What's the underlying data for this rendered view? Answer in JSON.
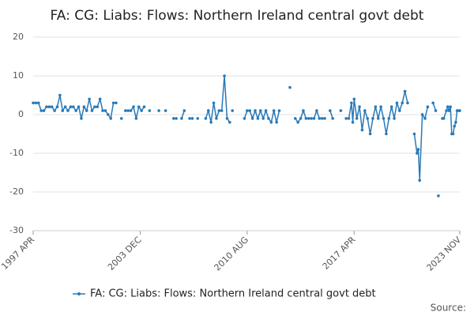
{
  "chart_data": {
    "type": "line",
    "title": "FA: CG: Liabs: Flows: Northern Ireland central govt debt",
    "source": "Source:",
    "x": [
      "1997-04",
      "1997-06",
      "1997-08",
      "1997-10",
      "1997-12",
      "1998-02",
      "1998-04",
      "1998-06",
      "1998-08",
      "1998-10",
      "1998-12",
      "1999-02",
      "1999-04",
      "1999-06",
      "1999-08",
      "1999-10",
      "1999-12",
      "2000-02",
      "2000-04",
      "2000-06",
      "2000-08",
      "2000-10",
      "2000-12",
      "2001-02",
      "2001-04",
      "2001-06",
      "2001-08",
      "2001-10",
      "2001-12",
      "2002-02",
      "2002-04",
      "2002-06",
      "2002-08",
      "2002-10",
      "2002-11",
      "2003-01",
      "2003-03",
      "2003-05",
      "2003-07",
      "2003-09",
      "2003-11",
      "2004-01",
      "2004-03",
      "2004-05",
      "2004-07",
      "2004-08",
      "2005-02",
      "2005-03",
      "2005-07",
      "2005-09",
      "2006-01",
      "2006-03",
      "2006-05",
      "2006-07",
      "2006-09",
      "2006-11",
      "2007-01",
      "2007-03",
      "2007-05",
      "2007-07",
      "2007-09",
      "2008-01",
      "2008-03",
      "2008-05",
      "2008-07",
      "2008-09",
      "2008-11",
      "2009-01",
      "2009-03",
      "2009-05",
      "2009-07",
      "2009-08",
      "2009-09",
      "2009-10",
      "2010-06",
      "2010-08",
      "2010-10",
      "2010-12",
      "2011-02",
      "2011-04",
      "2011-06",
      "2011-08",
      "2011-10",
      "2011-12",
      "2012-02",
      "2012-04",
      "2012-06",
      "2012-08",
      "2012-10",
      "2013-04",
      "2013-06",
      "2013-08",
      "2013-10",
      "2013-12",
      "2014-02",
      "2014-04",
      "2014-06",
      "2014-08",
      "2014-10",
      "2014-12",
      "2015-02",
      "2015-04",
      "2015-06",
      "2015-08",
      "2015-10",
      "2015-12",
      "2016-02",
      "2016-06",
      "2016-08",
      "2016-10",
      "2016-12",
      "2017-02",
      "2017-03",
      "2017-04",
      "2017-06",
      "2017-08",
      "2017-10",
      "2017-12",
      "2018-02",
      "2018-04",
      "2018-06",
      "2018-08",
      "2018-10",
      "2018-12",
      "2019-02",
      "2019-04",
      "2019-06",
      "2019-08",
      "2019-10",
      "2019-12",
      "2020-02",
      "2020-04",
      "2020-06",
      "2020-08",
      "2020-10",
      "2021-01",
      "2021-03",
      "2021-04",
      "2021-05",
      "2021-07",
      "2021-09",
      "2021-11",
      "2022-01",
      "2022-03",
      "2022-05",
      "2022-06",
      "2022-07",
      "2022-08",
      "2022-10",
      "2022-11",
      "2023-01",
      "2023-02",
      "2023-03",
      "2023-04",
      "2023-05",
      "2023-06",
      "2023-07",
      "2023-08",
      "2023-09",
      "2023-10",
      "2023-11"
    ],
    "series": [
      {
        "name": "FA: CG: Liabs: Flows: Northern Ireland central govt debt",
        "color": "#2a7ab8",
        "values": [
          3,
          3,
          3,
          1,
          1,
          2,
          2,
          2,
          1,
          2,
          5,
          1,
          2,
          1,
          2,
          2,
          1,
          2,
          -1,
          2,
          1,
          4,
          1,
          2,
          2,
          4,
          1,
          1,
          0,
          -1,
          3,
          3,
          null,
          -1,
          null,
          1,
          1,
          1,
          2,
          -1,
          2,
          1,
          2,
          null,
          1,
          null,
          1,
          null,
          1,
          null,
          -1,
          -1,
          null,
          -1,
          1,
          null,
          -1,
          -1,
          null,
          -1,
          null,
          -1,
          1,
          -2,
          3,
          -1,
          1,
          1,
          10,
          -1,
          -2,
          null,
          1,
          null,
          -1,
          1,
          1,
          -1,
          1,
          -1,
          1,
          -1,
          1,
          -1,
          -2,
          1,
          -2,
          1,
          null,
          7,
          null,
          -1,
          -2,
          -1,
          1,
          -1,
          -1,
          -1,
          -1,
          1,
          -1,
          -1,
          -1,
          null,
          1,
          -1,
          null,
          1,
          null,
          -1,
          -1,
          3,
          -2,
          4,
          -1,
          2,
          -4,
          1,
          -1,
          -5,
          -1,
          2,
          -1,
          2,
          -1,
          -5,
          -1,
          2,
          -1,
          3,
          1,
          3,
          6,
          3,
          null,
          -5,
          -10,
          -9,
          -17,
          0,
          -1,
          2,
          null,
          3,
          1,
          null,
          -21,
          null,
          -1,
          -1,
          1,
          2,
          1,
          2,
          -5,
          -5,
          -3,
          -2,
          1,
          1,
          1
        ]
      }
    ],
    "xlim": [
      "1997-04",
      "2023-11"
    ],
    "xticks": [
      {
        "value": "1997-04",
        "label": "1997 APR"
      },
      {
        "value": "2003-12",
        "label": "2003 DEC"
      },
      {
        "value": "2010-08",
        "label": "2010 AUG"
      },
      {
        "value": "2017-04",
        "label": "2017 APR"
      },
      {
        "value": "2023-11",
        "label": "2023 NOV"
      }
    ],
    "ylim": [
      -30,
      20
    ],
    "yticks": [
      -30,
      -20,
      -10,
      0,
      10,
      20
    ],
    "grid": true,
    "legend": "bottom"
  }
}
